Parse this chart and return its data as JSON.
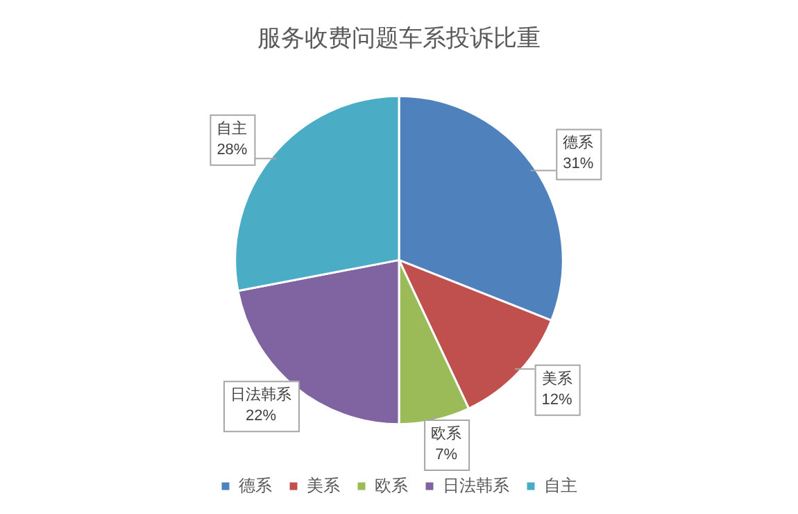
{
  "chart_data": {
    "type": "pie",
    "title": "服务收费问题车系投诉比重",
    "categories": [
      "德系",
      "美系",
      "欧系",
      "日法韩系",
      "自主"
    ],
    "values": [
      31,
      12,
      7,
      22,
      28
    ],
    "value_labels": [
      "31%",
      "12%",
      "7%",
      "22%",
      "28%"
    ],
    "colors": [
      "#4f81bd",
      "#c0504d",
      "#9bbb59",
      "#8064a2",
      "#4bacc6"
    ],
    "legend": "bottom"
  }
}
